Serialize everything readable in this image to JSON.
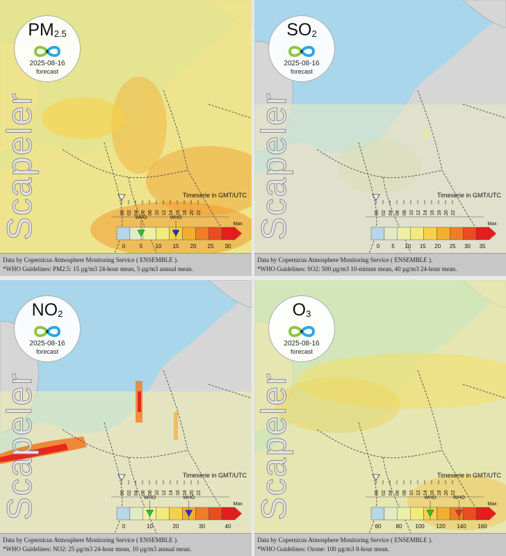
{
  "brand": "Scapeler",
  "date": "2025-08-16",
  "forecast_label": "forecast",
  "timeseries_label": "Timeserie in GMT/UTC",
  "who_label": "WHO",
  "max_label": "Max",
  "hours": [
    "00",
    "02",
    "04",
    "06",
    "08",
    "10",
    "12",
    "14",
    "16",
    "18",
    "20",
    "22"
  ],
  "footer_source": "Data by Copernicus Atmosphere Monitoring Service ( ENSEMBLE ).",
  "colors": {
    "land": "#d6d6d6",
    "sea": "#a9d6ea",
    "border": "#555555",
    "scale": [
      "#b7d7e8",
      "#e1ecc7",
      "#ebf0a6",
      "#f2ea7c",
      "#f6d24a",
      "#f3ae30",
      "#ef7d27",
      "#ea4d1f",
      "#e41e1d"
    ],
    "who_green": "#22cc22",
    "who_blue": "#2233cc",
    "who_red": "#e2352d"
  },
  "panels": [
    {
      "name": "PM",
      "sub": "2.5",
      "ticks": [
        "0",
        "5",
        "10",
        "15",
        "20",
        "25",
        "30"
      ],
      "guideline": "*WHO Guidelines: PM2.5: 15 µg/m3 24-hour mean, 5 µg/m3 annual mean.",
      "who_markers": [
        {
          "value": 5,
          "color": "green"
        },
        {
          "value": 15,
          "color": "blue"
        }
      ],
      "scale_max": 30
    },
    {
      "name": "SO",
      "sub": "2",
      "ticks": [
        "0",
        "5",
        "10",
        "15",
        "20",
        "25",
        "30",
        "35"
      ],
      "guideline": "*WHO Guidelines: SO2: 500 µg/m3 10-minute mean, 40 µg/m3 24-hour mean.",
      "who_markers": [],
      "scale_max": 35
    },
    {
      "name": "NO",
      "sub": "2",
      "ticks": [
        "0",
        "10",
        "20",
        "30",
        "40"
      ],
      "guideline": "*WHO Guidelines: NO2: 25 µg/m3 24-hour mean, 10 µg/m3 annual mean.",
      "who_markers": [
        {
          "value": 10,
          "color": "green"
        },
        {
          "value": 25,
          "color": "blue"
        }
      ],
      "scale_max": 40
    },
    {
      "name": "O",
      "sub": "3",
      "ticks": [
        "60",
        "80",
        "100",
        "120",
        "140",
        "160"
      ],
      "guideline": "*WHO Guidelines: Ozone: 100 µg/m3 8-hour mean.",
      "who_markers": [
        {
          "value": 100,
          "color": "green"
        },
        {
          "value": 133,
          "color": "red"
        }
      ],
      "scale_min": 40,
      "scale_max": 160
    }
  ]
}
